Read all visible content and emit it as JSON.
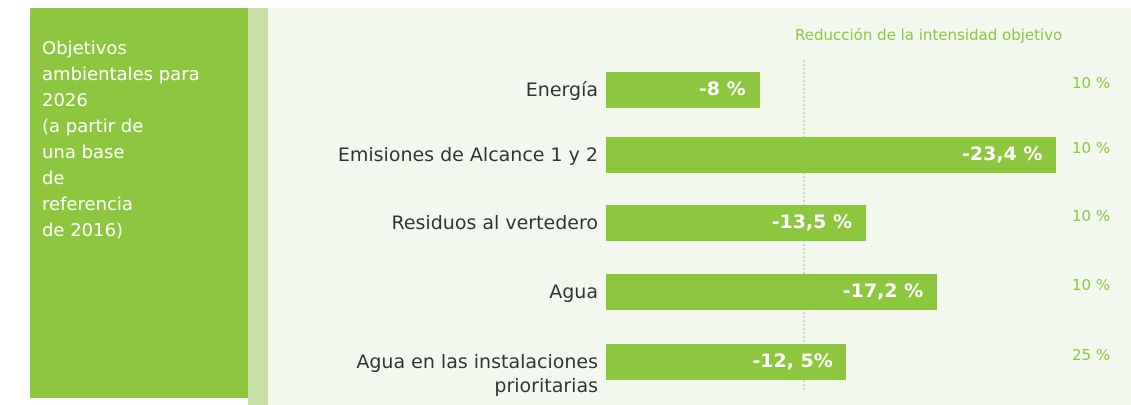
{
  "side_text": [
    "Objetivos",
    "ambientales para",
    "2026",
    "(a partir de",
    "una base",
    "de",
    "referencia",
    "de 2016)"
  ],
  "chart_data": {
    "type": "bar",
    "orientation": "horizontal",
    "target_header": "Reducción de la intensidad objetivo",
    "categories": [
      "Energía",
      "Emisiones de Alcance 1 y 2",
      "Residuos al vertedero",
      "Agua",
      "Agua en las instalaciones prioritarias"
    ],
    "values": [
      -8,
      -23.4,
      -13.5,
      -17.2,
      -12.5
    ],
    "value_labels": [
      "-8 %",
      "-23,4 %",
      "-13,5 %",
      "-17,2 %",
      "-12, 5%"
    ],
    "targets": [
      10,
      10,
      10,
      10,
      25
    ],
    "target_labels": [
      "10 %",
      "10 %",
      "10 %",
      "10 %",
      "25 %"
    ],
    "color": "#8dc63f"
  }
}
